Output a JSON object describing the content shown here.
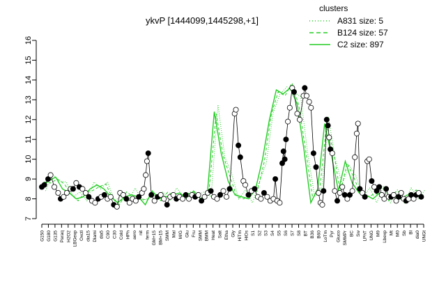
{
  "chart_data": {
    "type": "line",
    "title": "ykvP [1444099,1445298,+1]",
    "xlabel": "",
    "ylabel": "",
    "ylim": [
      7,
      16
    ],
    "yticks": [
      7,
      8,
      9,
      10,
      11,
      12,
      13,
      14,
      15,
      16
    ],
    "legend": {
      "position": "top-right",
      "title": "clusters",
      "color": "#22cc22",
      "entries": [
        {
          "label": "A831 size: 5",
          "style": "dotted"
        },
        {
          "label": "B124 size: 57",
          "style": "dashed"
        },
        {
          "label": "C2 size: 897",
          "style": "solid"
        }
      ]
    },
    "categories": [
      "G150",
      "G180",
      "G135",
      "Paraq",
      "H2O2",
      "LBGexp",
      "Oxctl",
      "dia15",
      "Diami",
      "dia5",
      "C90",
      "C30",
      "Cold",
      "HPh",
      "aero",
      "nit",
      "ferm",
      "GM+15",
      "BM+15",
      "SMM",
      "Mal",
      "Glu",
      "Heat",
      "Fru",
      "Salt",
      "Etha",
      "Gly",
      "HiTm",
      "S1",
      "S2",
      "S3",
      "S4",
      "S5",
      "S6",
      "S7",
      "S8",
      "BT",
      "B36",
      "B60",
      "LoTm",
      "Pyr",
      "Gluco",
      "SMMPr",
      "BC",
      "Sw",
      "LPhT",
      "UNG",
      "MG+t5",
      "M9",
      "Lbexp",
      "Mt",
      "M0",
      "Sb",
      "Bl",
      "dia0",
      "UNGt"
    ],
    "series": [
      {
        "name": "C2",
        "values": [
          8.6,
          8.9,
          9.1,
          8.5,
          8.3,
          8.0,
          8.1,
          8.5,
          8.7,
          8.5,
          8.1,
          7.8,
          8.1,
          8.2,
          8.1,
          7.7,
          8.4,
          8.0,
          8.1,
          8.2,
          8.3,
          8.0,
          8.4,
          8.0,
          8.3,
          12.4,
          10.3,
          8.9,
          8.2,
          8.1,
          8.0,
          8.5,
          10.0,
          12.0,
          13.5,
          13.3,
          13.6,
          12.8,
          10.5,
          7.8,
          8.5,
          11.8,
          10.2,
          8.4,
          9.9,
          8.8,
          8.3,
          8.2,
          8.0,
          8.3,
          8.0,
          8.1,
          8.0,
          8.2,
          8.2,
          8.1
        ]
      }
    ],
    "points": [
      {
        "x": 0,
        "y": 8.6,
        "open": false
      },
      {
        "x": 0.4,
        "y": 8.7,
        "open": false
      },
      {
        "x": 1,
        "y": 9.0,
        "open": false
      },
      {
        "x": 1.4,
        "y": 9.2,
        "open": true
      },
      {
        "x": 2,
        "y": 8.6,
        "open": true
      },
      {
        "x": 2.6,
        "y": 8.3,
        "open": true
      },
      {
        "x": 3,
        "y": 8.0,
        "open": false
      },
      {
        "x": 3.5,
        "y": 8.1,
        "open": true
      },
      {
        "x": 4,
        "y": 8.3,
        "open": true
      },
      {
        "x": 4.6,
        "y": 8.5,
        "open": true
      },
      {
        "x": 5,
        "y": 8.5,
        "open": false
      },
      {
        "x": 5.5,
        "y": 8.8,
        "open": true
      },
      {
        "x": 6,
        "y": 8.6,
        "open": false
      },
      {
        "x": 6.5,
        "y": 8.5,
        "open": true
      },
      {
        "x": 7,
        "y": 8.3,
        "open": true
      },
      {
        "x": 7.5,
        "y": 8.1,
        "open": false
      },
      {
        "x": 8,
        "y": 7.9,
        "open": true
      },
      {
        "x": 8.5,
        "y": 7.8,
        "open": true
      },
      {
        "x": 9,
        "y": 8.0,
        "open": false
      },
      {
        "x": 9.5,
        "y": 8.1,
        "open": true
      },
      {
        "x": 10,
        "y": 8.2,
        "open": false
      },
      {
        "x": 10.5,
        "y": 8.0,
        "open": true
      },
      {
        "x": 11,
        "y": 8.1,
        "open": true
      },
      {
        "x": 11.5,
        "y": 7.7,
        "open": false
      },
      {
        "x": 12,
        "y": 7.6,
        "open": true
      },
      {
        "x": 12.5,
        "y": 8.3,
        "open": true
      },
      {
        "x": 13,
        "y": 8.2,
        "open": true
      },
      {
        "x": 13.5,
        "y": 8.0,
        "open": false
      },
      {
        "x": 14,
        "y": 7.8,
        "open": true
      },
      {
        "x": 14.5,
        "y": 8.0,
        "open": true
      },
      {
        "x": 15,
        "y": 7.9,
        "open": true
      },
      {
        "x": 15.5,
        "y": 8.1,
        "open": false
      },
      {
        "x": 16,
        "y": 8.3,
        "open": true
      },
      {
        "x": 16.3,
        "y": 8.5,
        "open": true
      },
      {
        "x": 16.6,
        "y": 9.2,
        "open": true
      },
      {
        "x": 16.8,
        "y": 9.9,
        "open": true
      },
      {
        "x": 17,
        "y": 10.3,
        "open": false
      },
      {
        "x": 17.5,
        "y": 8.2,
        "open": false
      },
      {
        "x": 18,
        "y": 7.9,
        "open": true
      },
      {
        "x": 18.5,
        "y": 8.1,
        "open": false
      },
      {
        "x": 19,
        "y": 8.2,
        "open": true
      },
      {
        "x": 19.5,
        "y": 8.0,
        "open": true
      },
      {
        "x": 20,
        "y": 7.7,
        "open": false
      },
      {
        "x": 20.5,
        "y": 8.1,
        "open": true
      },
      {
        "x": 21,
        "y": 8.2,
        "open": true
      },
      {
        "x": 21.5,
        "y": 8.0,
        "open": false
      },
      {
        "x": 22,
        "y": 8.1,
        "open": true
      },
      {
        "x": 22.5,
        "y": 8.0,
        "open": true
      },
      {
        "x": 23,
        "y": 8.2,
        "open": false
      },
      {
        "x": 23.5,
        "y": 8.0,
        "open": true
      },
      {
        "x": 24,
        "y": 8.2,
        "open": true
      },
      {
        "x": 24.5,
        "y": 8.1,
        "open": false
      },
      {
        "x": 25,
        "y": 8.2,
        "open": true
      },
      {
        "x": 25.5,
        "y": 7.9,
        "open": false
      },
      {
        "x": 26,
        "y": 8.1,
        "open": true
      },
      {
        "x": 26.5,
        "y": 8.3,
        "open": true
      },
      {
        "x": 27,
        "y": 8.4,
        "open": false
      },
      {
        "x": 27.5,
        "y": 8.1,
        "open": true
      },
      {
        "x": 28,
        "y": 8.0,
        "open": true
      },
      {
        "x": 28.5,
        "y": 8.2,
        "open": false
      },
      {
        "x": 29,
        "y": 8.4,
        "open": true
      },
      {
        "x": 29.5,
        "y": 8.1,
        "open": true
      },
      {
        "x": 30,
        "y": 8.5,
        "open": false
      },
      {
        "x": 30.8,
        "y": 12.3,
        "open": true
      },
      {
        "x": 31,
        "y": 12.5,
        "open": true
      },
      {
        "x": 31.4,
        "y": 10.7,
        "open": false
      },
      {
        "x": 31.7,
        "y": 10.1,
        "open": false
      },
      {
        "x": 32.2,
        "y": 8.9,
        "open": true
      },
      {
        "x": 32.5,
        "y": 8.7,
        "open": true
      },
      {
        "x": 33,
        "y": 8.2,
        "open": false
      },
      {
        "x": 33.5,
        "y": 8.4,
        "open": true
      },
      {
        "x": 34,
        "y": 8.5,
        "open": false
      },
      {
        "x": 34.5,
        "y": 8.1,
        "open": true
      },
      {
        "x": 35,
        "y": 8.0,
        "open": true
      },
      {
        "x": 35.5,
        "y": 8.3,
        "open": false
      },
      {
        "x": 36,
        "y": 8.1,
        "open": true
      },
      {
        "x": 36.5,
        "y": 7.9,
        "open": true
      },
      {
        "x": 37,
        "y": 8.0,
        "open": true
      },
      {
        "x": 37.3,
        "y": 9.0,
        "open": false
      },
      {
        "x": 37.6,
        "y": 7.9,
        "open": true
      },
      {
        "x": 38,
        "y": 7.8,
        "open": true
      },
      {
        "x": 38.4,
        "y": 9.8,
        "open": false
      },
      {
        "x": 38.6,
        "y": 10.4,
        "open": false
      },
      {
        "x": 38.8,
        "y": 10.0,
        "open": false
      },
      {
        "x": 39,
        "y": 11.0,
        "open": false
      },
      {
        "x": 39.3,
        "y": 11.9,
        "open": true
      },
      {
        "x": 39.6,
        "y": 12.6,
        "open": true
      },
      {
        "x": 40,
        "y": 13.6,
        "open": true
      },
      {
        "x": 40.3,
        "y": 13.4,
        "open": false
      },
      {
        "x": 40.8,
        "y": 12.3,
        "open": true
      },
      {
        "x": 41.2,
        "y": 12.0,
        "open": true
      },
      {
        "x": 41.8,
        "y": 13.2,
        "open": true
      },
      {
        "x": 42,
        "y": 13.6,
        "open": false
      },
      {
        "x": 42.3,
        "y": 13.2,
        "open": true
      },
      {
        "x": 42.7,
        "y": 12.9,
        "open": true
      },
      {
        "x": 43,
        "y": 12.6,
        "open": true
      },
      {
        "x": 43.4,
        "y": 10.3,
        "open": false
      },
      {
        "x": 43.8,
        "y": 9.6,
        "open": false
      },
      {
        "x": 44.2,
        "y": 8.3,
        "open": true
      },
      {
        "x": 44.5,
        "y": 7.8,
        "open": true
      },
      {
        "x": 44.8,
        "y": 7.7,
        "open": true
      },
      {
        "x": 45,
        "y": 8.4,
        "open": false
      },
      {
        "x": 45.5,
        "y": 12.0,
        "open": false
      },
      {
        "x": 45.7,
        "y": 11.7,
        "open": false
      },
      {
        "x": 45.9,
        "y": 11.1,
        "open": true
      },
      {
        "x": 46.1,
        "y": 10.5,
        "open": false
      },
      {
        "x": 46.4,
        "y": 10.3,
        "open": true
      },
      {
        "x": 46.8,
        "y": 8.4,
        "open": true
      },
      {
        "x": 47.2,
        "y": 7.9,
        "open": false
      },
      {
        "x": 47.6,
        "y": 8.3,
        "open": true
      },
      {
        "x": 48,
        "y": 8.6,
        "open": true
      },
      {
        "x": 48.4,
        "y": 8.2,
        "open": false
      },
      {
        "x": 48.8,
        "y": 8.0,
        "open": true
      },
      {
        "x": 49.2,
        "y": 8.2,
        "open": false
      },
      {
        "x": 49.6,
        "y": 8.4,
        "open": true
      },
      {
        "x": 50,
        "y": 10.1,
        "open": true
      },
      {
        "x": 50.3,
        "y": 11.3,
        "open": true
      },
      {
        "x": 50.5,
        "y": 11.8,
        "open": true
      },
      {
        "x": 50.8,
        "y": 8.5,
        "open": false
      },
      {
        "x": 51.2,
        "y": 8.3,
        "open": true
      },
      {
        "x": 51.6,
        "y": 8.1,
        "open": false
      },
      {
        "x": 52,
        "y": 9.9,
        "open": true
      },
      {
        "x": 52.3,
        "y": 10.0,
        "open": true
      },
      {
        "x": 52.7,
        "y": 8.9,
        "open": false
      },
      {
        "x": 53.1,
        "y": 8.6,
        "open": true
      },
      {
        "x": 53.5,
        "y": 8.4,
        "open": false
      },
      {
        "x": 53.9,
        "y": 8.6,
        "open": false
      },
      {
        "x": 54.3,
        "y": 8.2,
        "open": true
      },
      {
        "x": 54.7,
        "y": 8.0,
        "open": true
      },
      {
        "x": 55,
        "y": 8.5,
        "open": false
      },
      {
        "x": 55.4,
        "y": 8.1,
        "open": true
      },
      {
        "x": 55.8,
        "y": 8.1,
        "open": false
      },
      {
        "x": 56.2,
        "y": 8.2,
        "open": true
      },
      {
        "x": 56.6,
        "y": 7.9,
        "open": true
      },
      {
        "x": 57,
        "y": 8.1,
        "open": false
      },
      {
        "x": 57.4,
        "y": 8.3,
        "open": true
      },
      {
        "x": 57.8,
        "y": 8.0,
        "open": true
      },
      {
        "x": 58.2,
        "y": 7.9,
        "open": false
      },
      {
        "x": 58.6,
        "y": 8.0,
        "open": true
      },
      {
        "x": 59,
        "y": 8.2,
        "open": false
      },
      {
        "x": 59.4,
        "y": 8.0,
        "open": true
      },
      {
        "x": 59.8,
        "y": 8.2,
        "open": false
      },
      {
        "x": 60.2,
        "y": 8.3,
        "open": true
      },
      {
        "x": 60.6,
        "y": 8.1,
        "open": false
      }
    ],
    "xrange": [
      0,
      61
    ],
    "x_tick_labels": [
      "G150",
      "G180",
      "G135",
      "Paraq",
      "H2O2",
      "LBGexp",
      "Oxctl",
      "dia15",
      "Diami",
      "dia5",
      "C90",
      "C30",
      "Cold",
      "HPh",
      "aero",
      "nit",
      "ferm",
      "GM+15",
      "BM+15",
      "SMM",
      "Mal",
      "M/G",
      "Glu",
      "Fru",
      "SMM",
      "BMM",
      "Heat",
      "Salt",
      "Etha",
      "Gly",
      "HiTm",
      "HiOs",
      "S1",
      "S2",
      "S3",
      "S4",
      "S5",
      "S6",
      "S7",
      "S8",
      "BT",
      "B36",
      "B60",
      "LoTm",
      "Pyr",
      "Gluco",
      "SMMPr",
      "BC",
      "Sw",
      "LPhT",
      "UNG",
      "M9",
      "Lbexp",
      "Mt",
      "M0",
      "Sb",
      "Bl",
      "dia0",
      "UNGt"
    ]
  }
}
